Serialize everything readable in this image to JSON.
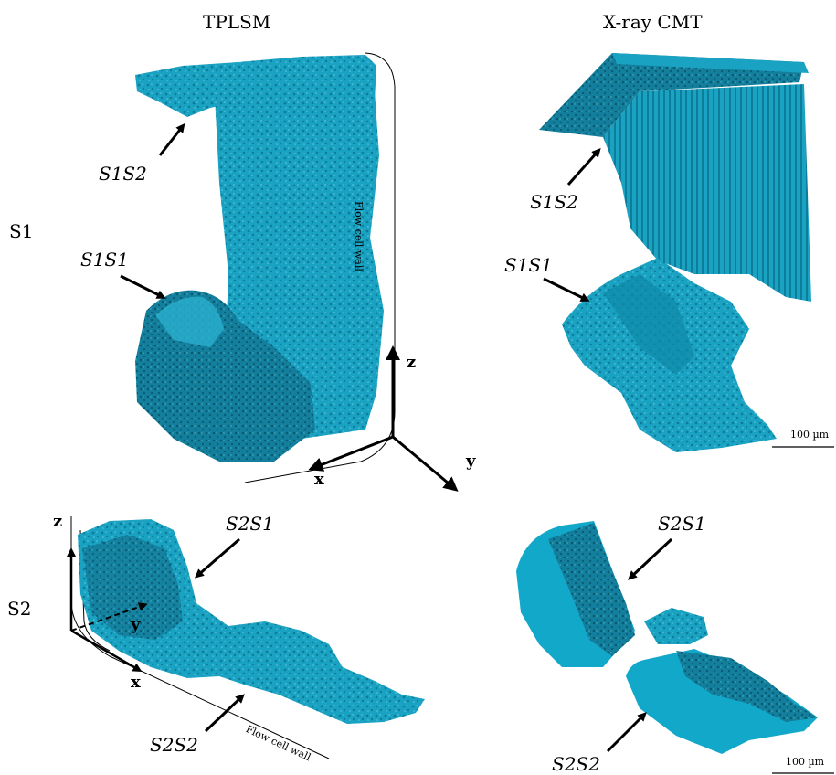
{
  "columns": {
    "left": "TPLSM",
    "right": "X-ray CMT"
  },
  "rows": {
    "top": "S1",
    "bottom": "S2"
  },
  "annotations": {
    "tl_s1s2": "S1S2",
    "tl_s1s1": "S1S1",
    "tr_s1s2": "S1S2",
    "tr_s1s1": "S1S1",
    "bl_s2s1": "S2S1",
    "bl_s2s2": "S2S2",
    "br_s2s1": "S2S1",
    "br_s2s2": "S2S2"
  },
  "axes_top": {
    "z": "z",
    "x": "x",
    "y": "y"
  },
  "axes_bottom": {
    "z": "z",
    "x": "x",
    "y": "y"
  },
  "wall_label_top": "Flow cell wall",
  "wall_label_bottom": "Flow cell wall",
  "scale_top": "100 µm",
  "scale_bottom": "100 µm",
  "colors": {
    "biofilm": "#1aa2c2",
    "biofilm_dark": "#0b6f88",
    "biofilm_face": "#12a8c9"
  }
}
